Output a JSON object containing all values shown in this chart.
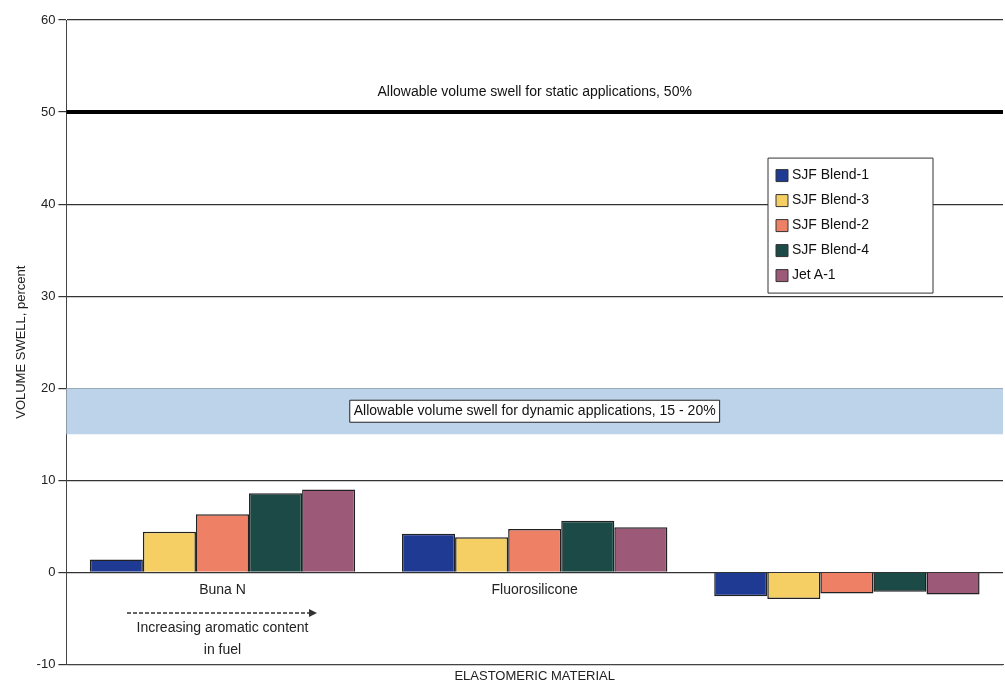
{
  "chart_data": {
    "type": "bar",
    "xlabel": "ELASTOMERIC MATERIAL",
    "ylabel": "VOLUME SWELL, percent",
    "categories": [
      "Buna N",
      "Fluorosilicone",
      null
    ],
    "series": [
      {
        "name": "SJF Blend-1",
        "color": "#1f3a93",
        "values": [
          1.4,
          4.2,
          -2.6
        ]
      },
      {
        "name": "SJF Blend-3",
        "color": "#f5cf63",
        "values": [
          4.4,
          3.8,
          -2.9
        ]
      },
      {
        "name": "SJF Blend-2",
        "color": "#ee8066",
        "values": [
          6.3,
          4.7,
          -2.3
        ]
      },
      {
        "name": "SJF Blend-4",
        "color": "#1c4a47",
        "values": [
          8.6,
          5.6,
          -2.1
        ]
      },
      {
        "name": "Jet A-1",
        "color": "#9c5a78",
        "values": [
          9.0,
          4.9,
          -2.4
        ]
      }
    ],
    "ylim": [
      -10,
      60
    ],
    "yticks": [
      -10,
      0,
      10,
      20,
      30,
      40,
      50,
      60
    ],
    "grid": "y",
    "legend": "top right",
    "ref_lines": [
      {
        "axis": "y",
        "value": 50,
        "label": "Allowable volume swell for static applications, 50%",
        "color": "#000000"
      }
    ],
    "bands": [
      {
        "axis": "y",
        "from": 15,
        "to": 20,
        "label": "Allowable volume swell for dynamic applications, 15 - 20%",
        "color": "#bcd3ea"
      }
    ],
    "annotations": [
      "Increasing aromatic content in fuel"
    ]
  }
}
